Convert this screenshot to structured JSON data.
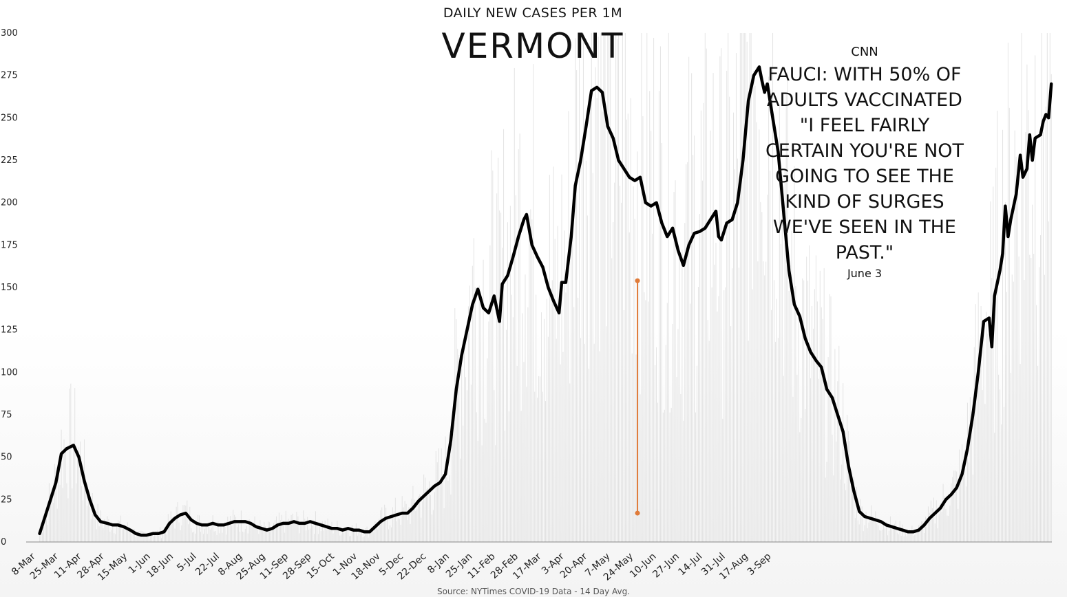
{
  "header": {
    "subtitle": "DAILY NEW CASES PER 1M",
    "title": "VERMONT"
  },
  "annotation": {
    "source": "CNN",
    "quote": "FAUCI: WITH 50% OF ADULTS VACCINATED \"I FEEL FAIRLY CERTAIN YOU'RE NOT GOING TO SEE THE KIND OF SURGES WE'VE SEEN IN THE PAST.\"",
    "date_label": "June 3",
    "marker_color": "#e07b39"
  },
  "footer": {
    "source": "Source: NYTimes COVID-19 Data - 14 Day Avg."
  },
  "chart_data": {
    "type": "line",
    "title": "VERMONT",
    "subtitle": "DAILY NEW CASES PER 1M",
    "xlabel": "",
    "ylabel": "",
    "ylim": [
      0,
      300
    ],
    "yticks": [
      0,
      25,
      50,
      75,
      100,
      125,
      150,
      175,
      200,
      225,
      250,
      275,
      300
    ],
    "x_tick_labels": [
      "8-Mar",
      "25-Mar",
      "11-Apr",
      "28-Apr",
      "15-May",
      "1-Jun",
      "18-Jun",
      "5-Jul",
      "22-Jul",
      "8-Aug",
      "25-Aug",
      "11-Sep",
      "28-Sep",
      "15-Oct",
      "1-Nov",
      "18-Nov",
      "5-Dec",
      "22-Dec",
      "8-Jan",
      "25-Jan",
      "11-Feb",
      "28-Feb",
      "17-Mar",
      "3-Apr",
      "20-Apr",
      "7-May",
      "24-May",
      "10-Jun",
      "27-Jun",
      "14-Jul",
      "31-Jul",
      "17-Aug",
      "3-Sep"
    ],
    "x_start": "2020-03-08",
    "grid": false,
    "legend": "none",
    "line_color": "#000000",
    "bar_color": "#d9d9d9",
    "series": [
      {
        "values_by_day": [
          [
            10,
            5
          ],
          [
            14,
            15
          ],
          [
            18,
            25
          ],
          [
            22,
            35
          ],
          [
            26,
            52
          ],
          [
            30,
            55
          ],
          [
            35,
            57
          ],
          [
            39,
            50
          ],
          [
            43,
            36
          ],
          [
            47,
            25
          ],
          [
            51,
            16
          ],
          [
            55,
            12
          ],
          [
            60,
            11
          ],
          [
            64,
            10
          ],
          [
            68,
            10
          ],
          [
            72,
            9
          ],
          [
            77,
            7
          ],
          [
            81,
            5
          ],
          [
            85,
            4
          ],
          [
            89,
            4
          ],
          [
            94,
            5
          ],
          [
            98,
            5
          ],
          [
            102,
            6
          ],
          [
            106,
            11
          ],
          [
            110,
            14
          ],
          [
            114,
            16
          ],
          [
            118,
            17
          ],
          [
            122,
            13
          ],
          [
            126,
            11
          ],
          [
            130,
            10
          ],
          [
            134,
            10
          ],
          [
            138,
            11
          ],
          [
            142,
            10
          ],
          [
            146,
            10
          ],
          [
            150,
            11
          ],
          [
            154,
            12
          ],
          [
            158,
            12
          ],
          [
            162,
            12
          ],
          [
            166,
            11
          ],
          [
            170,
            9
          ],
          [
            174,
            8
          ],
          [
            178,
            7
          ],
          [
            182,
            8
          ],
          [
            186,
            10
          ],
          [
            190,
            11
          ],
          [
            194,
            11
          ],
          [
            198,
            12
          ],
          [
            202,
            11
          ],
          [
            206,
            11
          ],
          [
            210,
            12
          ],
          [
            214,
            11
          ],
          [
            218,
            10
          ],
          [
            222,
            9
          ],
          [
            226,
            8
          ],
          [
            230,
            8
          ],
          [
            234,
            7
          ],
          [
            238,
            8
          ],
          [
            242,
            7
          ],
          [
            246,
            7
          ],
          [
            250,
            6
          ],
          [
            254,
            6
          ],
          [
            258,
            9
          ],
          [
            262,
            12
          ],
          [
            266,
            14
          ],
          [
            270,
            15
          ],
          [
            274,
            16
          ],
          [
            278,
            17
          ],
          [
            282,
            17
          ],
          [
            286,
            20
          ],
          [
            290,
            24
          ],
          [
            294,
            27
          ],
          [
            298,
            30
          ],
          [
            302,
            33
          ],
          [
            306,
            35
          ],
          [
            310,
            40
          ],
          [
            314,
            60
          ],
          [
            318,
            90
          ],
          [
            322,
            110
          ],
          [
            326,
            125
          ],
          [
            330,
            140
          ],
          [
            334,
            149
          ],
          [
            338,
            138
          ],
          [
            342,
            135
          ],
          [
            346,
            145
          ],
          [
            350,
            130
          ],
          [
            352,
            152
          ],
          [
            356,
            157
          ],
          [
            360,
            168
          ],
          [
            364,
            180
          ],
          [
            368,
            190
          ],
          [
            370,
            193
          ],
          [
            374,
            175
          ],
          [
            378,
            168
          ],
          [
            382,
            162
          ],
          [
            386,
            150
          ],
          [
            390,
            142
          ],
          [
            394,
            135
          ],
          [
            396,
            153
          ],
          [
            399,
            153
          ],
          [
            403,
            180
          ],
          [
            406,
            210
          ],
          [
            410,
            225
          ],
          [
            414,
            245
          ],
          [
            418,
            266
          ],
          [
            422,
            268
          ],
          [
            426,
            265
          ],
          [
            430,
            245
          ],
          [
            434,
            238
          ],
          [
            438,
            225
          ],
          [
            442,
            220
          ],
          [
            446,
            215
          ],
          [
            450,
            213
          ],
          [
            454,
            215
          ],
          [
            458,
            200
          ],
          [
            462,
            198
          ],
          [
            466,
            200
          ],
          [
            470,
            188
          ],
          [
            474,
            180
          ],
          [
            478,
            185
          ],
          [
            482,
            172
          ],
          [
            486,
            163
          ],
          [
            490,
            175
          ],
          [
            494,
            182
          ],
          [
            498,
            183
          ],
          [
            502,
            185
          ],
          [
            506,
            190
          ],
          [
            510,
            195
          ],
          [
            512,
            180
          ],
          [
            514,
            178
          ],
          [
            518,
            188
          ],
          [
            522,
            190
          ],
          [
            526,
            200
          ],
          [
            530,
            225
          ],
          [
            534,
            260
          ],
          [
            538,
            275
          ],
          [
            542,
            280
          ],
          [
            544,
            272
          ],
          [
            546,
            265
          ],
          [
            548,
            270
          ],
          [
            552,
            250
          ],
          [
            556,
            230
          ],
          [
            560,
            195
          ],
          [
            564,
            160
          ],
          [
            568,
            140
          ],
          [
            572,
            133
          ],
          [
            576,
            120
          ],
          [
            580,
            112
          ],
          [
            584,
            107
          ],
          [
            588,
            103
          ],
          [
            592,
            90
          ],
          [
            596,
            85
          ],
          [
            600,
            75
          ],
          [
            604,
            65
          ],
          [
            608,
            45
          ],
          [
            612,
            30
          ],
          [
            616,
            18
          ],
          [
            620,
            15
          ],
          [
            624,
            14
          ],
          [
            628,
            13
          ],
          [
            632,
            12
          ],
          [
            636,
            10
          ],
          [
            640,
            9
          ],
          [
            644,
            8
          ],
          [
            648,
            7
          ],
          [
            652,
            6
          ],
          [
            656,
            6
          ],
          [
            660,
            7
          ],
          [
            664,
            10
          ],
          [
            668,
            14
          ],
          [
            672,
            17
          ],
          [
            676,
            20
          ],
          [
            680,
            25
          ],
          [
            684,
            28
          ],
          [
            688,
            32
          ],
          [
            692,
            40
          ],
          [
            696,
            55
          ],
          [
            700,
            75
          ],
          [
            704,
            100
          ],
          [
            708,
            130
          ],
          [
            712,
            132
          ],
          [
            714,
            115
          ],
          [
            716,
            145
          ],
          [
            720,
            160
          ],
          [
            722,
            170
          ],
          [
            724,
            198
          ],
          [
            726,
            180
          ],
          [
            728,
            190
          ],
          [
            732,
            205
          ],
          [
            735,
            228
          ],
          [
            737,
            215
          ],
          [
            740,
            220
          ],
          [
            742,
            240
          ],
          [
            744,
            225
          ],
          [
            746,
            238
          ],
          [
            750,
            240
          ],
          [
            752,
            248
          ],
          [
            754,
            252
          ],
          [
            756,
            250
          ],
          [
            758,
            270
          ]
        ]
      }
    ],
    "annotation_marker": {
      "date": "June 3",
      "x_day": 452,
      "y_top": 154,
      "y_bottom": 17
    }
  }
}
